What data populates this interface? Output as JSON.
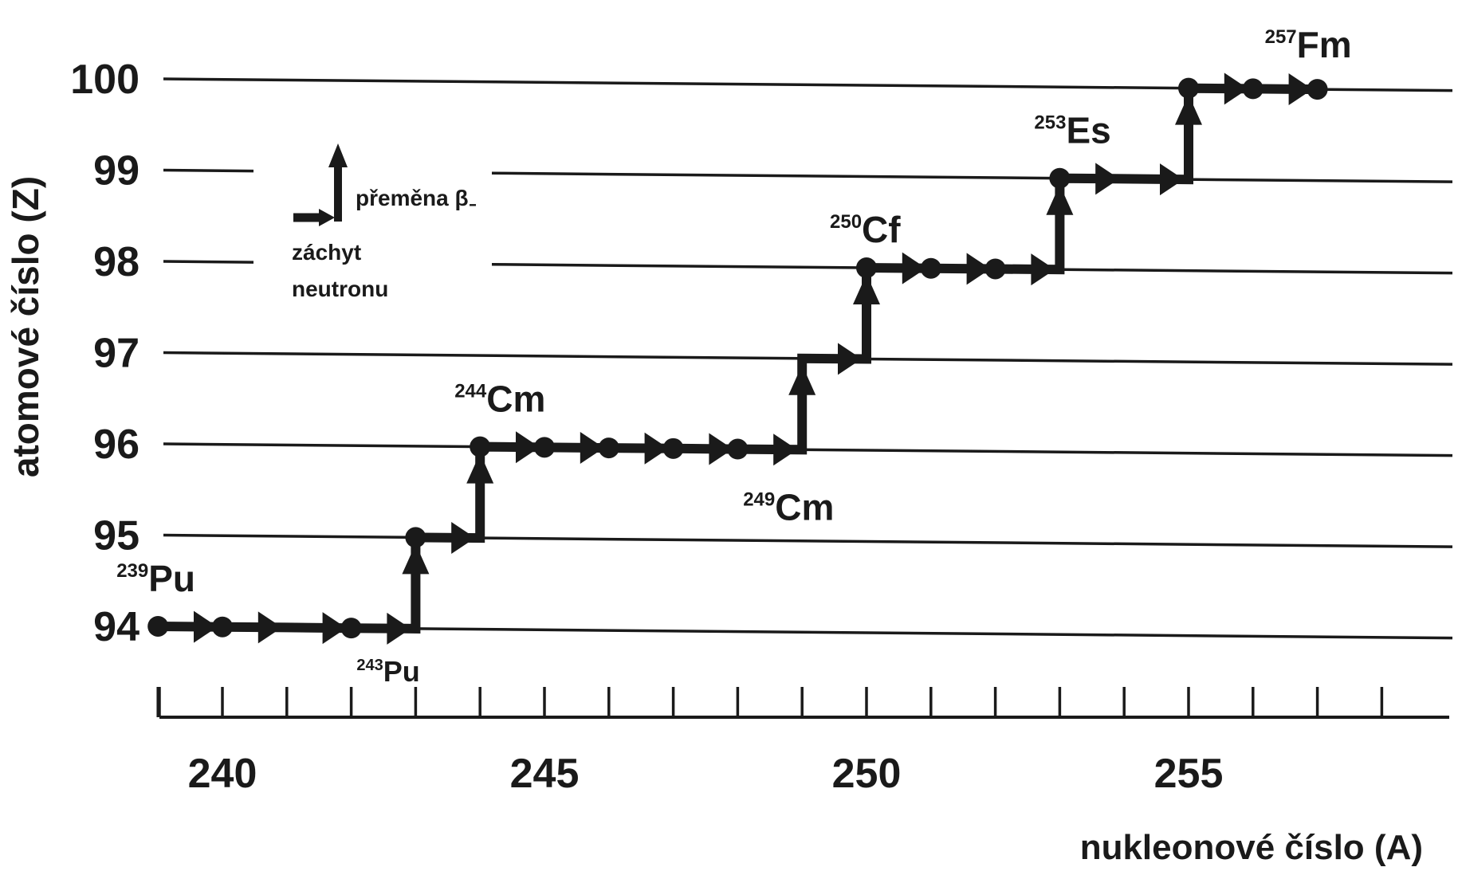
{
  "chart_data": {
    "type": "line",
    "title": "",
    "xlabel": "nukleonové číslo (A)",
    "ylabel": "atomové číslo (Z)",
    "xlim": [
      238,
      258
    ],
    "ylim": [
      94,
      100
    ],
    "x_ticks": [
      239,
      240,
      241,
      242,
      243,
      244,
      245,
      246,
      247,
      248,
      249,
      250,
      251,
      252,
      253,
      254,
      255,
      256,
      257,
      258
    ],
    "x_tick_labels": [
      {
        "x": 240,
        "label": "240"
      },
      {
        "x": 245,
        "label": "245"
      },
      {
        "x": 250,
        "label": "250"
      },
      {
        "x": 255,
        "label": "255"
      }
    ],
    "y_ticks": [
      94,
      95,
      96,
      97,
      98,
      99,
      100
    ],
    "y_tick_labels": [
      "94",
      "95",
      "96",
      "97",
      "98",
      "99",
      "100"
    ],
    "grid": "horizontal",
    "series": [
      {
        "points": [
          {
            "a": 239,
            "z": 94
          },
          {
            "a": 240,
            "z": 94
          },
          {
            "a": 241,
            "z": 94
          },
          {
            "a": 242,
            "z": 94
          },
          {
            "a": 243,
            "z": 94
          },
          {
            "a": 243,
            "z": 95
          },
          {
            "a": 244,
            "z": 95
          },
          {
            "a": 244,
            "z": 96
          },
          {
            "a": 245,
            "z": 96
          },
          {
            "a": 246,
            "z": 96
          },
          {
            "a": 247,
            "z": 96
          },
          {
            "a": 248,
            "z": 96
          },
          {
            "a": 249,
            "z": 96
          },
          {
            "a": 249,
            "z": 97
          },
          {
            "a": 250,
            "z": 97
          },
          {
            "a": 250,
            "z": 98
          },
          {
            "a": 251,
            "z": 98
          },
          {
            "a": 252,
            "z": 98
          },
          {
            "a": 253,
            "z": 98
          },
          {
            "a": 253,
            "z": 99
          },
          {
            "a": 254,
            "z": 99
          },
          {
            "a": 255,
            "z": 99
          },
          {
            "a": 255,
            "z": 100
          },
          {
            "a": 256,
            "z": 100
          },
          {
            "a": 257,
            "z": 100
          }
        ]
      }
    ],
    "nuclide_markers": [
      {
        "a": 239,
        "z": 94
      },
      {
        "a": 240,
        "z": 94
      },
      {
        "a": 242,
        "z": 94
      },
      {
        "a": 243,
        "z": 95
      },
      {
        "a": 244,
        "z": 96
      },
      {
        "a": 245,
        "z": 96
      },
      {
        "a": 246,
        "z": 96
      },
      {
        "a": 247,
        "z": 96
      },
      {
        "a": 248,
        "z": 96
      },
      {
        "a": 250,
        "z": 98
      },
      {
        "a": 251,
        "z": 98
      },
      {
        "a": 252,
        "z": 98
      },
      {
        "a": 253,
        "z": 99
      },
      {
        "a": 255,
        "z": 100
      },
      {
        "a": 256,
        "z": 100
      },
      {
        "a": 257,
        "z": 100
      }
    ],
    "annotations": [
      {
        "mass": "239",
        "symbol": "Pu",
        "a": 239,
        "z": 94,
        "position": "above-left",
        "size": "large"
      },
      {
        "mass": "243",
        "symbol": "Pu",
        "a": 243,
        "z": 94,
        "position": "below-left",
        "size": "small"
      },
      {
        "mass": "244",
        "symbol": "Cm",
        "a": 244,
        "z": 96,
        "position": "above",
        "size": "large"
      },
      {
        "mass": "249",
        "symbol": "Cm",
        "a": 249,
        "z": 96,
        "position": "below-left",
        "size": "large"
      },
      {
        "mass": "250",
        "symbol": "Cf",
        "a": 250,
        "z": 98,
        "position": "above-left",
        "size": "large"
      },
      {
        "mass": "253",
        "symbol": "Es",
        "a": 253,
        "z": 99,
        "position": "above",
        "size": "large"
      },
      {
        "mass": "257",
        "symbol": "Fm",
        "a": 257,
        "z": 100,
        "position": "above-left",
        "size": "large"
      }
    ],
    "legend": {
      "beta_label": "přeměna β",
      "beta_sub": "-",
      "capture_label_line1": "záchyt",
      "capture_label_line2": "neutronu"
    }
  }
}
